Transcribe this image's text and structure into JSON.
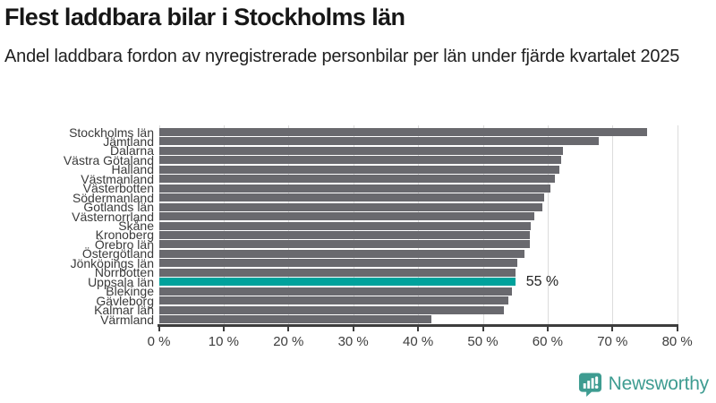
{
  "header": {
    "title": "Flest laddbara bilar i Stockholms län",
    "subtitle": "Andel laddbara fordon av nyregistrerade personbilar per län under fjärde kvartalet 2025"
  },
  "chart_data": {
    "type": "bar",
    "orientation": "horizontal",
    "title": "Flest laddbara bilar i Stockholms län",
    "xlabel": "",
    "ylabel": "",
    "xlim": [
      0,
      80
    ],
    "grid": true,
    "legend": false,
    "categories": [
      "Stockholms län",
      "Jämtland",
      "Dalarna",
      "Västra Götaland",
      "Halland",
      "Västmanland",
      "Västerbotten",
      "Södermanland",
      "Gotlands län",
      "Västernorrland",
      "Skåne",
      "Kronoberg",
      "Örebro län",
      "Östergötland",
      "Jönköpings län",
      "Norrbotten",
      "Uppsala län",
      "Blekinge",
      "Gävleborg",
      "Kalmar län",
      "Värmland"
    ],
    "values": [
      75.4,
      67.9,
      62.4,
      62.1,
      61.8,
      61.1,
      60.4,
      59.5,
      59.2,
      57.9,
      57.4,
      57.3,
      57.2,
      56.4,
      55.3,
      55.1,
      55,
      54.5,
      54,
      53.2,
      42.1
    ],
    "unit": "%",
    "x_tick_values": [
      0,
      10,
      20,
      30,
      40,
      50,
      60,
      70,
      80
    ],
    "x_tick_labels": [
      "0 %",
      "10 %",
      "20 %",
      "30 %",
      "40 %",
      "50 %",
      "60 %",
      "70 %",
      "80 %"
    ],
    "highlight_index": 16,
    "highlight_category": "Uppsala län",
    "highlight_label": "55 %",
    "colors": {
      "bar": "#69696e",
      "highlight": "#00a29c",
      "gridline": "#dcdcdc",
      "axis": "#3d3d3d"
    }
  },
  "footer": {
    "brand": "Newsworthy",
    "brand_color": "#3e9c91",
    "logo_icon": "bar-chart-speech-bubble-icon"
  }
}
